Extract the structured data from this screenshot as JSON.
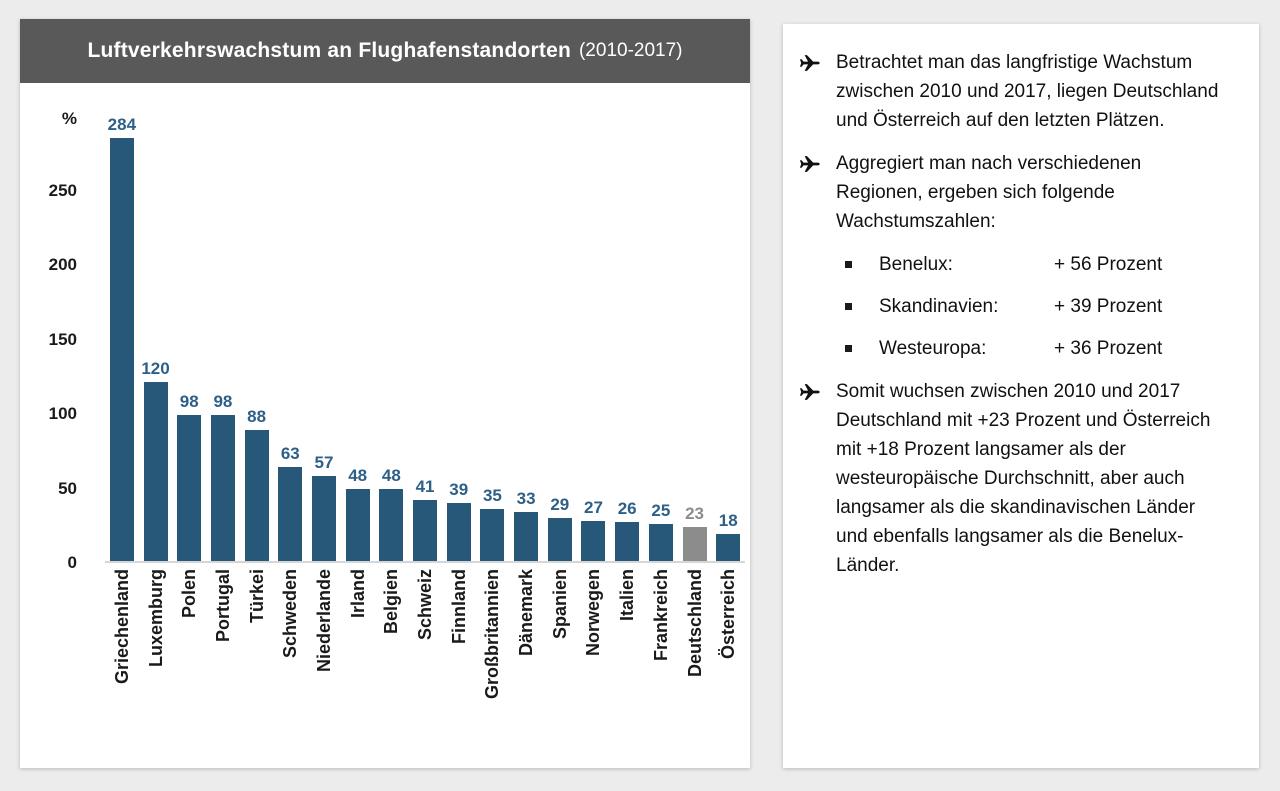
{
  "page": {
    "background": "#ececec"
  },
  "chart_panel": {
    "title": "Luftverkehrswachstum an Flughafenstandorten",
    "title_suffix": "(2010-2017)",
    "header_bg": "#595959"
  },
  "chart_data": {
    "type": "bar",
    "title": "Luftverkehrswachstum an Flughafenstandorten (2010-2017)",
    "unit": "%",
    "categories": [
      "Griechenland",
      "Luxemburg",
      "Polen",
      "Portugal",
      "Türkei",
      "Schweden",
      "Niederlande",
      "Irland",
      "Belgien",
      "Schweiz",
      "Finnland",
      "Großbritannien",
      "Dänemark",
      "Spanien",
      "Norwegen",
      "Italien",
      "Frankreich",
      "Deutschland",
      "Österreich"
    ],
    "values": [
      284,
      120,
      98,
      98,
      88,
      63,
      57,
      48,
      48,
      41,
      39,
      35,
      33,
      29,
      27,
      26,
      25,
      23,
      18
    ],
    "highlight_category": "Deutschland",
    "bar_color": "#27587a",
    "highlight_bar_color": "#8c8c8c",
    "value_label_color": "#2e5f87",
    "highlight_value_label_color": "#8c8c8c",
    "yticks": [
      0,
      50,
      100,
      150,
      200,
      250
    ],
    "ylim": [
      0,
      300
    ],
    "xlabel": "",
    "ylabel": "%",
    "grid": false,
    "legend": false
  },
  "right_panel": {
    "bullets": [
      {
        "text": "Betrachtet man das langfristige Wachstum zwischen 2010 und 2017, liegen Deutschland und Österreich auf den letzten Plätzen."
      },
      {
        "text": "Aggregiert man nach verschiedenen Regionen, ergeben sich folgende Wachstumszahlen:"
      },
      {
        "text": "Somit wuchsen zwischen 2010 und 2017 Deutschland mit +23 Prozent und Österreich mit +18 Prozent langsamer als der westeuropäische Durchschnitt, aber auch langsamer als die skandinavischen Länder und ebenfalls langsamer als die Benelux-Länder."
      }
    ],
    "regions": [
      {
        "label": "Benelux:",
        "value": "+ 56 Prozent"
      },
      {
        "label": "Skandinavien:",
        "value": "+ 39 Prozent"
      },
      {
        "label": "Westeuropa:",
        "value": "+ 36 Prozent"
      }
    ]
  }
}
